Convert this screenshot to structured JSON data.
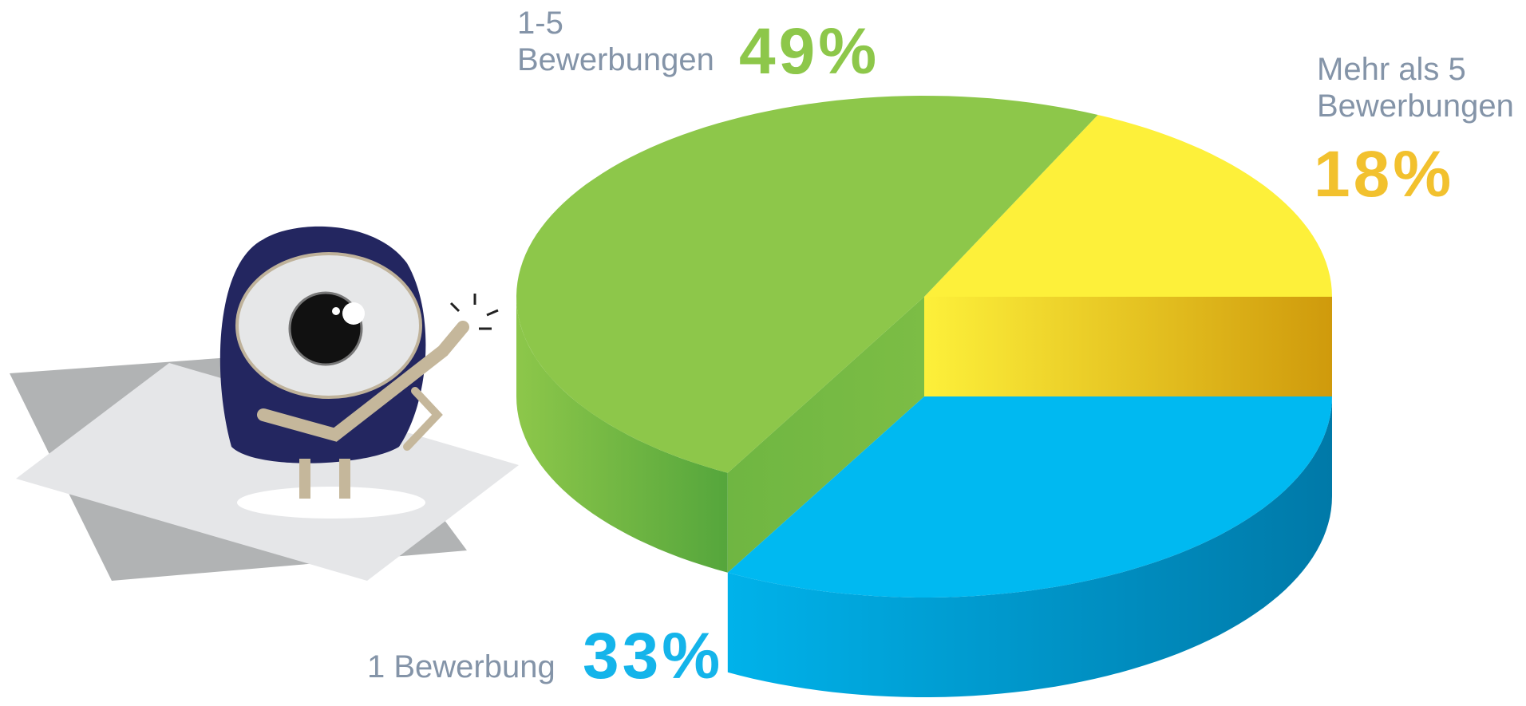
{
  "chart_data": {
    "type": "pie3d",
    "categories": [
      "Mehr als 5\nBewerbungen",
      "1-5\nBewerbungen",
      "1 Bewerbung"
    ],
    "values": [
      18,
      49,
      33
    ],
    "value_labels": [
      "18%",
      "49%",
      "33%"
    ],
    "colors": [
      "#fdf03a",
      "#8dc74a",
      "#00b9f1"
    ],
    "label_colors": [
      "#f2c12e",
      "#8dc74a",
      "#14b4ea"
    ]
  }
}
